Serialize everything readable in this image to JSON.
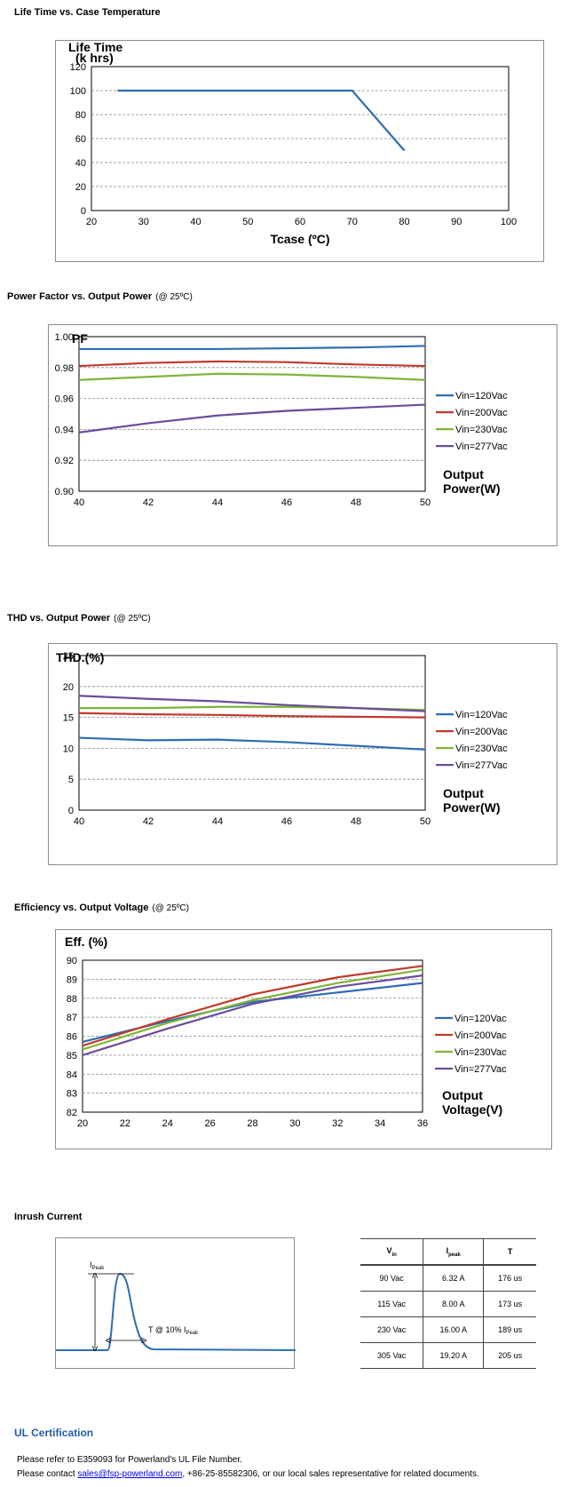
{
  "sections": {
    "life": {
      "title": "Life Time vs. Case Temperature"
    },
    "pf": {
      "title": "Power Factor vs. Output Power",
      "cond": "(@ 25ºC)"
    },
    "thd": {
      "title": "THD vs. Output Power",
      "cond": "(@ 25ºC)"
    },
    "eff": {
      "title": "Efficiency vs. Output Voltage",
      "cond": "(@ 25ºC)"
    },
    "inrush": {
      "title": "Inrush Current"
    }
  },
  "chart_data": [
    {
      "id": "life",
      "type": "line",
      "ylabel_lines": [
        "Life Time",
        "(k hrs)"
      ],
      "xlabel_lines": [
        "Tcase (ºC)"
      ],
      "xlim": [
        20,
        100
      ],
      "ylim": [
        0,
        120
      ],
      "xticks": [
        20,
        30,
        40,
        50,
        60,
        70,
        80,
        90,
        100
      ],
      "yticks": [
        0,
        20,
        40,
        60,
        80,
        100,
        120
      ],
      "ytick_decimals": 0,
      "series": [
        {
          "color": "#2e6db4",
          "x": [
            25,
            70,
            80
          ],
          "y": [
            100,
            100,
            50
          ]
        }
      ]
    },
    {
      "id": "pf",
      "type": "line",
      "ylabel_lines": [
        "PF"
      ],
      "xlabel_lines": [
        "Output",
        "Power(W)"
      ],
      "xlim": [
        40,
        50
      ],
      "ylim": [
        0.9,
        1
      ],
      "xticks": [
        40,
        42,
        44,
        46,
        48,
        50
      ],
      "yticks": [
        0.9,
        0.92,
        0.94,
        0.96,
        0.98,
        1
      ],
      "ytick_decimals": 2,
      "series": [
        {
          "name": "Vin=120Vac",
          "color": "#2e6db4",
          "x": [
            40,
            42,
            44,
            46,
            48,
            50
          ],
          "y": [
            0.992,
            0.992,
            0.992,
            0.9925,
            0.993,
            0.994
          ]
        },
        {
          "name": "Vin=200Vac",
          "color": "#c0392b",
          "x": [
            40,
            42,
            44,
            46,
            48,
            50
          ],
          "y": [
            0.981,
            0.983,
            0.984,
            0.9835,
            0.982,
            0.981
          ]
        },
        {
          "name": "Vin=230Vac",
          "color": "#7fb539",
          "x": [
            40,
            42,
            44,
            46,
            48,
            50
          ],
          "y": [
            0.972,
            0.974,
            0.976,
            0.9755,
            0.974,
            0.972
          ]
        },
        {
          "name": "Vin=277Vac",
          "color": "#6a4c9c",
          "x": [
            40,
            42,
            44,
            46,
            48,
            50
          ],
          "y": [
            0.938,
            0.944,
            0.949,
            0.952,
            0.954,
            0.956
          ]
        }
      ]
    },
    {
      "id": "thd",
      "type": "line",
      "ylabel_lines": [
        "THD.(%)"
      ],
      "xlabel_lines": [
        "Output",
        "Power(W)"
      ],
      "xlim": [
        40,
        50
      ],
      "ylim": [
        0,
        25
      ],
      "xticks": [
        40,
        42,
        44,
        46,
        48,
        50
      ],
      "yticks": [
        0,
        5,
        10,
        15,
        20,
        25
      ],
      "ytick_decimals": 0,
      "series": [
        {
          "name": "Vin=120Vac",
          "color": "#2e6db4",
          "x": [
            40,
            42,
            44,
            46,
            48,
            50
          ],
          "y": [
            11.7,
            11.3,
            11.4,
            11.0,
            10.4,
            9.8
          ]
        },
        {
          "name": "Vin=200Vac",
          "color": "#c0392b",
          "x": [
            40,
            42,
            44,
            46,
            48,
            50
          ],
          "y": [
            15.7,
            15.5,
            15.4,
            15.2,
            15.1,
            15.0
          ]
        },
        {
          "name": "Vin=230Vac",
          "color": "#7fb539",
          "x": [
            40,
            42,
            44,
            46,
            48,
            50
          ],
          "y": [
            16.5,
            16.5,
            16.7,
            16.7,
            16.5,
            16.2
          ]
        },
        {
          "name": "Vin=277Vac",
          "color": "#6a4c9c",
          "x": [
            40,
            42,
            44,
            46,
            48,
            50
          ],
          "y": [
            18.5,
            18.0,
            17.6,
            17.0,
            16.5,
            16.0
          ]
        }
      ]
    },
    {
      "id": "eff",
      "type": "line",
      "ylabel_lines": [
        "Eff. (%)"
      ],
      "xlabel_lines": [
        "Output",
        "Voltage(V)"
      ],
      "xlim": [
        20,
        36
      ],
      "ylim": [
        82,
        90
      ],
      "xticks": [
        20,
        22,
        24,
        26,
        28,
        30,
        32,
        34,
        36
      ],
      "yticks": [
        82,
        83,
        84,
        85,
        86,
        87,
        88,
        89,
        90
      ],
      "ytick_decimals": 0,
      "series": [
        {
          "name": "Vin=120Vac",
          "color": "#2e6db4",
          "x": [
            20,
            24,
            28,
            32,
            36
          ],
          "y": [
            85.7,
            86.8,
            87.8,
            88.3,
            88.8
          ]
        },
        {
          "name": "Vin=200Vac",
          "color": "#c0392b",
          "x": [
            20,
            24,
            28,
            32,
            36
          ],
          "y": [
            85.5,
            86.9,
            88.2,
            89.1,
            89.7
          ]
        },
        {
          "name": "Vin=230Vac",
          "color": "#7fb539",
          "x": [
            20,
            24,
            28,
            32,
            36
          ],
          "y": [
            85.3,
            86.7,
            87.9,
            88.8,
            89.5
          ]
        },
        {
          "name": "Vin=277Vac",
          "color": "#6a4c9c",
          "x": [
            20,
            24,
            28,
            32,
            36
          ],
          "y": [
            85.0,
            86.4,
            87.7,
            88.6,
            89.2
          ]
        }
      ]
    }
  ],
  "inrush": {
    "ipeak_label": "I",
    "ipeak_sub": "Peak",
    "t_label": "T @ 10% I",
    "t_sub": "Peak",
    "table": {
      "headers": [
        {
          "main": "V",
          "sub": "in"
        },
        {
          "main": "I",
          "sub": "peak"
        },
        {
          "main": "T",
          "sub": ""
        }
      ],
      "rows": [
        [
          "90 Vac",
          "6.32 A",
          "176 us"
        ],
        [
          "115 Vac",
          "8.00 A",
          "173 us"
        ],
        [
          "230 Vac",
          "16.00 A",
          "189 us"
        ],
        [
          "305 Vac",
          "19.20 A",
          "205 us"
        ]
      ]
    }
  },
  "ul": {
    "title": "UL Certification",
    "line1": "Please refer to E359093 for Powerland's UL File Number.",
    "line2_pre": "Please contact ",
    "email": "sales@fsp-powerland.com",
    "line2_post": ", +86-25-85582306, or our local sales representative for related documents."
  },
  "colors": {
    "blue": "#2e6db4",
    "red": "#c0392b",
    "green": "#7fb539",
    "purple": "#6a4c9c",
    "ul_title": "#1f5fa8"
  }
}
